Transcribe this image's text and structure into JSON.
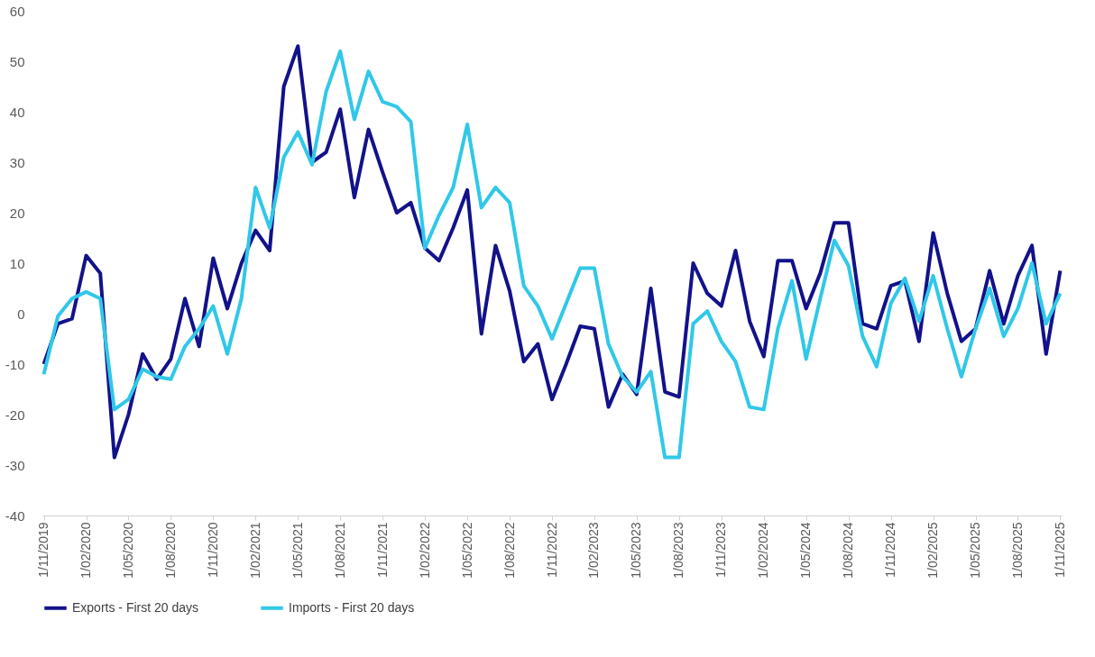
{
  "chart_data": {
    "type": "line",
    "categories": [
      "1/11/2019",
      null,
      null,
      "1/02/2020",
      null,
      null,
      "1/05/2020",
      null,
      null,
      "1/08/2020",
      null,
      null,
      "1/11/2020",
      null,
      null,
      "1/02/2021",
      null,
      null,
      "1/05/2021",
      null,
      null,
      "1/08/2021",
      null,
      null,
      "1/11/2021",
      null,
      null,
      "1/02/2022",
      null,
      null,
      "1/05/2022",
      null,
      null,
      "1/08/2022",
      null,
      null,
      "1/11/2022",
      null,
      null,
      "1/02/2023",
      null,
      null,
      "1/05/2023",
      null,
      null,
      "1/08/2023",
      null,
      null,
      "1/11/2023",
      null,
      null,
      "1/02/2024",
      null,
      null,
      "1/05/2024",
      null,
      null,
      "1/08/2024",
      null,
      null,
      "1/11/2024",
      null,
      null,
      "1/02/2025",
      null,
      null,
      "1/05/2025",
      null,
      null,
      "1/08/2025",
      null,
      null,
      "1/11/2025"
    ],
    "series": [
      {
        "name": "Exports - First 20 days",
        "color": "#12128a",
        "values": [
          -10,
          -2,
          -1,
          11.5,
          8,
          -28.5,
          -20,
          -8,
          -13,
          -9,
          3,
          -6.5,
          11,
          1,
          10,
          16.5,
          12.5,
          45,
          53,
          30,
          32,
          40.5,
          23,
          36.5,
          28,
          20,
          22,
          13,
          10.5,
          17,
          24.5,
          -4,
          13.5,
          4.5,
          -9.5,
          -6,
          -17,
          -10,
          -2.5,
          -3,
          -18.5,
          -12,
          -16,
          5,
          -15.5,
          -16.5,
          10,
          4,
          1.5,
          12.5,
          -1.5,
          -8.5,
          10.5,
          10.5,
          1,
          8,
          18,
          18,
          -2,
          -3,
          5.5,
          6.5,
          -5.5,
          16,
          4,
          -5.5,
          -3,
          8.5,
          -2,
          7.5,
          13.5,
          -8,
          8.5
        ]
      },
      {
        "name": "Imports - First 20 days",
        "color": "#30c8e8",
        "values": [
          -12,
          -0.5,
          3,
          4.3,
          3,
          -19,
          -17,
          -11,
          -12.5,
          -13,
          -6.5,
          -3,
          1.5,
          -8,
          3,
          25,
          17,
          31,
          36,
          29.5,
          44,
          52,
          38.5,
          48,
          42,
          41,
          38,
          13,
          19.5,
          25,
          37.5,
          21,
          25,
          22,
          5.5,
          1.5,
          -5,
          2,
          9,
          9,
          -6,
          -12.5,
          -15.5,
          -11.5,
          -28.5,
          -28.5,
          -2,
          0.5,
          -5.5,
          -9.5,
          -18.5,
          -19,
          -3,
          6.5,
          -9,
          3,
          14.5,
          9.5,
          -4.5,
          -10.5,
          2,
          7,
          -1.5,
          7.5,
          -3,
          -12.5,
          -3,
          5,
          -4.5,
          1,
          10,
          -2,
          4
        ]
      }
    ],
    "ylim": [
      -40,
      60
    ],
    "yticks": [
      -40,
      -30,
      -20,
      -10,
      0,
      10,
      20,
      30,
      40,
      50,
      60
    ],
    "legend": "bottom",
    "grid": false,
    "marker": "none",
    "line_style": "solid"
  }
}
